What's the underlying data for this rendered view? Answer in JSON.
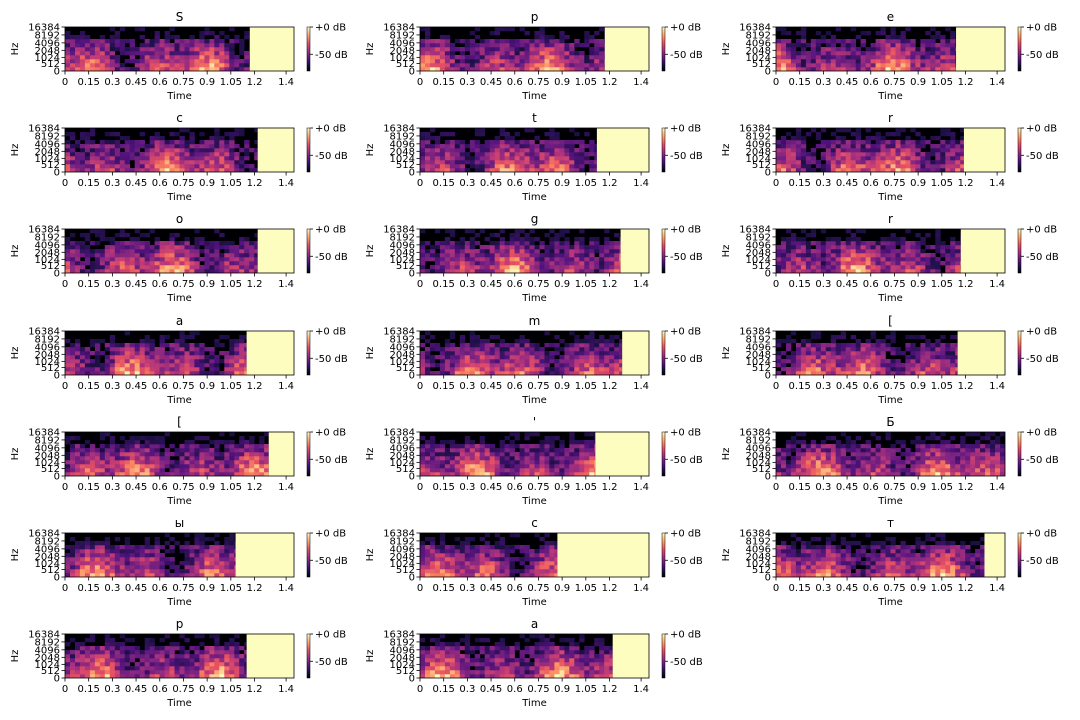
{
  "chart_data": {
    "type": "heatmap",
    "layout": {
      "rows": 7,
      "cols": 3
    },
    "xlabel": "Time",
    "ylabel": "Hz",
    "xlim": [
      0,
      1.45
    ],
    "x_ticks": [
      "0",
      "0.15",
      "0.3",
      "0.45",
      "0.6",
      "0.75",
      "0.9",
      "1.05",
      "1.2",
      "1.4"
    ],
    "x_tick_values": [
      0,
      0.15,
      0.3,
      0.45,
      0.6,
      0.75,
      0.9,
      1.05,
      1.2,
      1.4
    ],
    "y_scale": "mel",
    "y_ticks": [
      "0",
      "512",
      "1024",
      "2048",
      "4096",
      "8192",
      "16384"
    ],
    "y_tick_values": [
      0,
      512,
      1024,
      2048,
      4096,
      8192,
      16384
    ],
    "colorbar": {
      "colormap": "magma",
      "ticks": [
        "+0 dB",
        "-50 dB"
      ]
    },
    "pad_color": "#fcfdbf",
    "panels": [
      {
        "title": "S",
        "audio_end": 1.17
      },
      {
        "title": "p",
        "audio_end": 1.17
      },
      {
        "title": "e",
        "audio_end": 1.14
      },
      {
        "title": "c",
        "audio_end": 1.22
      },
      {
        "title": "t",
        "audio_end": 1.12
      },
      {
        "title": "r",
        "audio_end": 1.19
      },
      {
        "title": "o",
        "audio_end": 1.22
      },
      {
        "title": "g",
        "audio_end": 1.27
      },
      {
        "title": "r",
        "audio_end": 1.17
      },
      {
        "title": "a",
        "audio_end": 1.15
      },
      {
        "title": "m",
        "audio_end": 1.28
      },
      {
        "title": "[",
        "audio_end": 1.15
      },
      {
        "title": "[",
        "audio_end": 1.29
      },
      {
        "title": "'",
        "audio_end": 1.11
      },
      {
        "title": "Б",
        "audio_end": 1.45
      },
      {
        "title": "ы",
        "audio_end": 1.08
      },
      {
        "title": "с",
        "audio_end": 0.87
      },
      {
        "title": "т",
        "audio_end": 1.32
      },
      {
        "title": "р",
        "audio_end": 1.15
      },
      {
        "title": "а",
        "audio_end": 1.22
      }
    ]
  }
}
